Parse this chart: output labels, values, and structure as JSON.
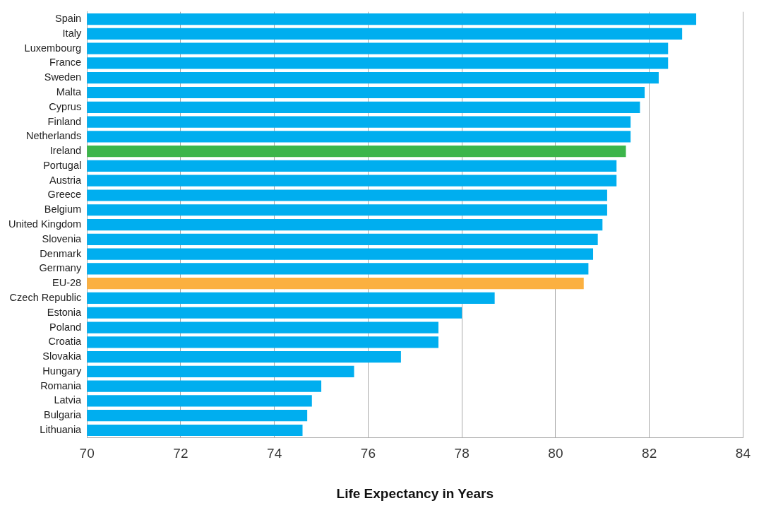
{
  "chart_data": {
    "type": "bar",
    "orientation": "horizontal",
    "xlabel": "Life Expectancy in Years",
    "categories": [
      "Spain",
      "Italy",
      "Luxembourg",
      "France",
      "Sweden",
      "Malta",
      "Cyprus",
      "Finland",
      "Netherlands",
      "Ireland",
      "Portugal",
      "Austria",
      "Greece",
      "Belgium",
      "United Kingdom",
      "Slovenia",
      "Denmark",
      "Germany",
      "EU-28",
      "Czech Republic",
      "Estonia",
      "Poland",
      "Croatia",
      "Slovakia",
      "Hungary",
      "Romania",
      "Latvia",
      "Bulgaria",
      "Lithuania"
    ],
    "values": [
      83.0,
      82.7,
      82.4,
      82.4,
      82.2,
      81.9,
      81.8,
      81.6,
      81.6,
      81.5,
      81.3,
      81.3,
      81.1,
      81.1,
      81.0,
      80.9,
      80.8,
      80.7,
      80.6,
      78.7,
      78.0,
      77.5,
      77.5,
      76.7,
      75.7,
      75.0,
      74.8,
      74.7,
      74.6
    ],
    "colors": [
      "#00aeef",
      "#00aeef",
      "#00aeef",
      "#00aeef",
      "#00aeef",
      "#00aeef",
      "#00aeef",
      "#00aeef",
      "#00aeef",
      "#3cb54a",
      "#00aeef",
      "#00aeef",
      "#00aeef",
      "#00aeef",
      "#00aeef",
      "#00aeef",
      "#00aeef",
      "#00aeef",
      "#fbb040",
      "#00aeef",
      "#00aeef",
      "#00aeef",
      "#00aeef",
      "#00aeef",
      "#00aeef",
      "#00aeef",
      "#00aeef",
      "#00aeef",
      "#00aeef"
    ],
    "xlim": [
      70,
      84
    ],
    "xticks": [
      70,
      72,
      74,
      76,
      78,
      80,
      82,
      84
    ],
    "grid": "x",
    "legend": false
  }
}
